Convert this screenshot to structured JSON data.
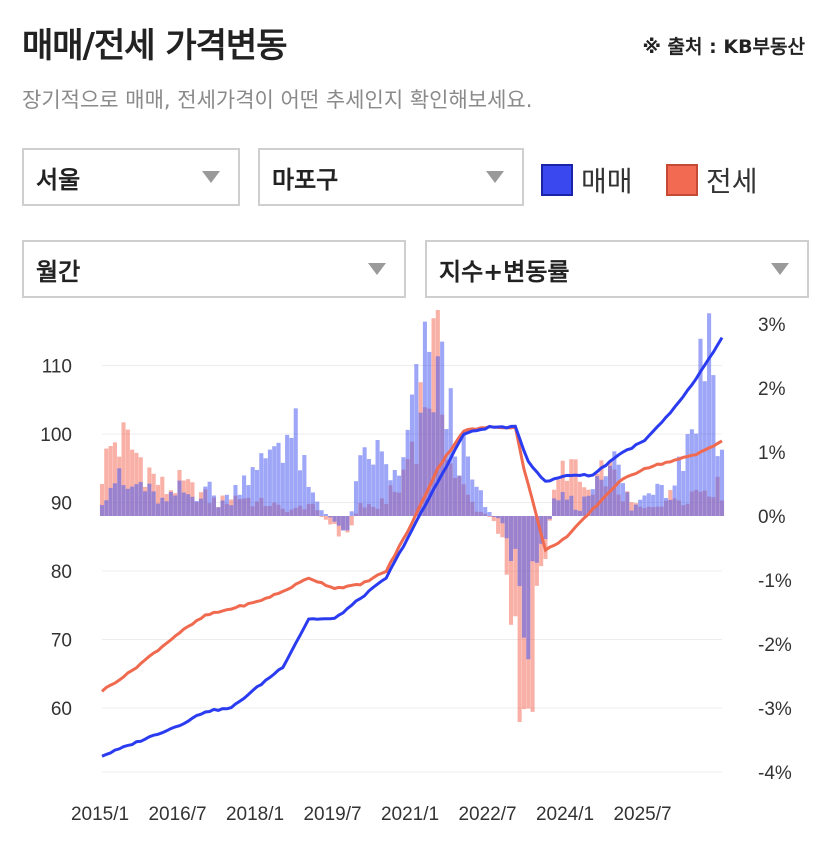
{
  "header": {
    "title": "매매/전세 가격변동",
    "source": "※ 출처 : KB부동산",
    "subtitle": "장기적으로 매매, 전세가격이 어떤 추세인지 확인해보세요."
  },
  "filters": {
    "region": "서울",
    "district": "마포구",
    "period": "월간",
    "mode": "지수+변동률"
  },
  "legend": [
    {
      "label": "매매",
      "color": "#2b3cf0"
    },
    {
      "label": "전세",
      "color": "#f06a50"
    }
  ],
  "chart_data": {
    "type": "line+bar",
    "x_tick_labels": [
      "2015/1",
      "2016/7",
      "2018/1",
      "2019/7",
      "2021/1",
      "2022/7",
      "2024/1",
      "2025/7"
    ],
    "x_tick_months": [
      0,
      18,
      36,
      54,
      72,
      90,
      108,
      126
    ],
    "left_axis": {
      "ticks": [
        60,
        70,
        80,
        90,
        100,
        110
      ],
      "range": [
        49,
        117
      ]
    },
    "right_axis": {
      "ticks": [
        "3%",
        "2%",
        "1%",
        "0%",
        "-1%",
        "-2%",
        "-3%",
        "-4%"
      ],
      "values": [
        3,
        2,
        1,
        0,
        -1,
        -2,
        -3,
        -4
      ],
      "range": [
        -4,
        3
      ]
    },
    "grid": true,
    "series": [
      {
        "name": "매매",
        "kind": "index_line",
        "axis": "left",
        "color": "#2b3cf0",
        "anchors": [
          [
            0,
            53
          ],
          [
            6,
            54.5
          ],
          [
            12,
            56
          ],
          [
            18,
            57.5
          ],
          [
            24,
            59.5
          ],
          [
            30,
            60
          ],
          [
            36,
            63
          ],
          [
            42,
            66
          ],
          [
            48,
            73
          ],
          [
            54,
            73
          ],
          [
            60,
            76
          ],
          [
            66,
            79
          ],
          [
            72,
            86
          ],
          [
            78,
            93
          ],
          [
            84,
            100
          ],
          [
            90,
            101
          ],
          [
            96,
            101
          ],
          [
            99,
            96
          ],
          [
            103,
            93
          ],
          [
            108,
            94
          ],
          [
            114,
            94
          ],
          [
            120,
            97
          ],
          [
            126,
            99
          ],
          [
            132,
            103
          ],
          [
            138,
            108
          ],
          [
            144,
            114
          ]
        ]
      },
      {
        "name": "전세",
        "kind": "index_line",
        "axis": "left",
        "color": "#f06a50",
        "anchors": [
          [
            0,
            62.5
          ],
          [
            6,
            65
          ],
          [
            12,
            68
          ],
          [
            18,
            71
          ],
          [
            24,
            73.5
          ],
          [
            30,
            74.5
          ],
          [
            36,
            75.5
          ],
          [
            42,
            77
          ],
          [
            48,
            79
          ],
          [
            54,
            77.5
          ],
          [
            60,
            78
          ],
          [
            66,
            80
          ],
          [
            72,
            87
          ],
          [
            78,
            95
          ],
          [
            84,
            100.5
          ],
          [
            90,
            101
          ],
          [
            96,
            101
          ],
          [
            98,
            95
          ],
          [
            103,
            83
          ],
          [
            108,
            85
          ],
          [
            114,
            89
          ],
          [
            120,
            93
          ],
          [
            126,
            95
          ],
          [
            132,
            96
          ],
          [
            138,
            97
          ],
          [
            144,
            99
          ]
        ]
      },
      {
        "name": "매매",
        "kind": "monthly_change_bars",
        "axis": "right",
        "color": "#4c5cf0",
        "anchors": [
          [
            0,
            0.3
          ],
          [
            3,
            0.6
          ],
          [
            6,
            0.4
          ],
          [
            9,
            0.5
          ],
          [
            12,
            0.3
          ],
          [
            15,
            0.2
          ],
          [
            18,
            0.4
          ],
          [
            21,
            0.3
          ],
          [
            24,
            0.5
          ],
          [
            27,
            0.2
          ],
          [
            30,
            0.3
          ],
          [
            33,
            0.7
          ],
          [
            36,
            0.6
          ],
          [
            39,
            1.1
          ],
          [
            42,
            1.3
          ],
          [
            45,
            1.2
          ],
          [
            48,
            0.4
          ],
          [
            51,
            0.1
          ],
          [
            54,
            -0.1
          ],
          [
            57,
            -0.2
          ],
          [
            60,
            0.7
          ],
          [
            63,
            1.0
          ],
          [
            66,
            0.8
          ],
          [
            69,
            0.5
          ],
          [
            72,
            1.5
          ],
          [
            75,
            2.2
          ],
          [
            78,
            2.3
          ],
          [
            81,
            1.5
          ],
          [
            84,
            0.9
          ],
          [
            87,
            0.4
          ],
          [
            90,
            0.05
          ],
          [
            93,
            -0.1
          ],
          [
            96,
            -0.9
          ],
          [
            99,
            -1.6
          ],
          [
            102,
            -0.5
          ],
          [
            105,
            0.2
          ],
          [
            108,
            0.3
          ],
          [
            111,
            0.1
          ],
          [
            114,
            0.5
          ],
          [
            117,
            1.0
          ],
          [
            120,
            0.7
          ],
          [
            123,
            0.1
          ],
          [
            126,
            0.3
          ],
          [
            129,
            0.6
          ],
          [
            132,
            0.4
          ],
          [
            135,
            1.0
          ],
          [
            138,
            1.8
          ],
          [
            141,
            3.0
          ],
          [
            144,
            0.9
          ]
        ]
      },
      {
        "name": "전세",
        "kind": "monthly_change_bars",
        "axis": "right",
        "color": "#f46f5c",
        "anchors": [
          [
            0,
            0.7
          ],
          [
            3,
            1.2
          ],
          [
            6,
            1.1
          ],
          [
            9,
            0.9
          ],
          [
            12,
            0.6
          ],
          [
            15,
            0.4
          ],
          [
            18,
            0.5
          ],
          [
            21,
            0.4
          ],
          [
            24,
            0.3
          ],
          [
            27,
            0.2
          ],
          [
            30,
            0.3
          ],
          [
            33,
            0.3
          ],
          [
            36,
            0.2
          ],
          [
            39,
            0.2
          ],
          [
            42,
            0.1
          ],
          [
            45,
            0.1
          ],
          [
            48,
            0.2
          ],
          [
            51,
            0.0
          ],
          [
            54,
            -0.2
          ],
          [
            57,
            -0.3
          ],
          [
            60,
            0.2
          ],
          [
            63,
            0.1
          ],
          [
            66,
            0.3
          ],
          [
            69,
            0.4
          ],
          [
            72,
            1.2
          ],
          [
            75,
            2.0
          ],
          [
            78,
            2.6
          ],
          [
            81,
            0.8
          ],
          [
            84,
            0.4
          ],
          [
            87,
            0.1
          ],
          [
            90,
            0.0
          ],
          [
            93,
            -0.3
          ],
          [
            96,
            -1.8
          ],
          [
            99,
            -3.8
          ],
          [
            102,
            -0.9
          ],
          [
            105,
            0.3
          ],
          [
            108,
            0.9
          ],
          [
            111,
            0.5
          ],
          [
            114,
            0.3
          ],
          [
            117,
            0.8
          ],
          [
            120,
            0.4
          ],
          [
            123,
            0.2
          ],
          [
            126,
            0.1
          ],
          [
            129,
            0.2
          ],
          [
            132,
            0.3
          ],
          [
            135,
            0.3
          ],
          [
            138,
            0.4
          ],
          [
            141,
            0.5
          ],
          [
            144,
            0.4
          ]
        ]
      }
    ]
  }
}
